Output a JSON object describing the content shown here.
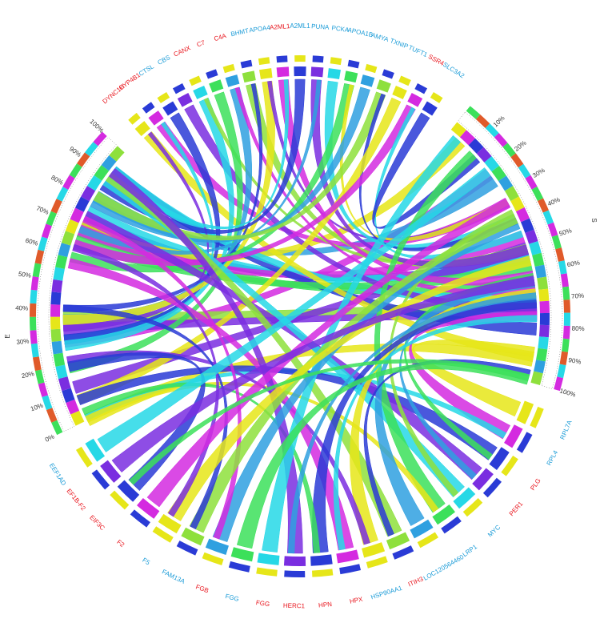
{
  "left_arc": {
    "label": "E",
    "ticks": [
      "0%",
      "10%",
      "20%",
      "30%",
      "40%",
      "50%",
      "60%",
      "70%",
      "80%",
      "90%",
      "100%"
    ]
  },
  "right_arc": {
    "label": "S",
    "ticks": [
      "10%",
      "20%",
      "30%",
      "40%",
      "50%",
      "60%",
      "70%",
      "80%",
      "90%",
      "100%"
    ]
  },
  "top_nodes": [
    {
      "label": "DYNC1H",
      "color": "#e8141c"
    },
    {
      "label": "CYP4B1",
      "color": "#e8141c"
    },
    {
      "label": "CTSL",
      "color": "#1a9bd7"
    },
    {
      "label": "CBS",
      "color": "#1a9bd7"
    },
    {
      "label": "CANX",
      "color": "#e8141c"
    },
    {
      "label": "C7",
      "color": "#e8141c"
    },
    {
      "label": "C4A",
      "color": "#e8141c"
    },
    {
      "label": "BHMT",
      "color": "#1a9bd7"
    },
    {
      "label": "APOA4",
      "color": "#1a9bd7"
    },
    {
      "label": "A2ML1",
      "color": "#e8141c"
    },
    {
      "label": "A2ML1",
      "color": "#1a9bd7"
    },
    {
      "label": "PUNA",
      "color": "#1a9bd7"
    },
    {
      "label": "PCKA",
      "color": "#1a9bd7"
    },
    {
      "label": "APOA1B",
      "color": "#1a9bd7"
    },
    {
      "label": "AMYA",
      "color": "#1a9bd7"
    },
    {
      "label": "TXNIP",
      "color": "#1a9bd7"
    },
    {
      "label": "TUFT1",
      "color": "#1a9bd7"
    },
    {
      "label": "SSR4",
      "color": "#e8141c"
    },
    {
      "label": "SLC3A2",
      "color": "#1a9bd7"
    }
  ],
  "bottom_nodes": [
    {
      "label": "RPL7A",
      "color": "#1a9bd7"
    },
    {
      "label": "RPL4",
      "color": "#1a9bd7"
    },
    {
      "label": "PLG",
      "color": "#e8141c"
    },
    {
      "label": "PER1",
      "color": "#e8141c"
    },
    {
      "label": "MYC",
      "color": "#1a9bd7"
    },
    {
      "label": "LRP1",
      "color": "#1a9bd7"
    },
    {
      "label": "LOC120564460",
      "color": "#1a9bd7"
    },
    {
      "label": "ITIH3",
      "color": "#e8141c"
    },
    {
      "label": "HSP90AA1",
      "color": "#1a9bd7"
    },
    {
      "label": "HPX",
      "color": "#e8141c"
    },
    {
      "label": "HPN",
      "color": "#e8141c"
    },
    {
      "label": "HERC1",
      "color": "#e8141c"
    },
    {
      "label": "FGG",
      "color": "#e8141c"
    },
    {
      "label": "FGG",
      "color": "#1a9bd7"
    },
    {
      "label": "FGB",
      "color": "#e8141c"
    },
    {
      "label": "FAM13A",
      "color": "#1a9bd7"
    },
    {
      "label": "F5",
      "color": "#1a9bd7"
    },
    {
      "label": "F2",
      "color": "#e8141c"
    },
    {
      "label": "EIF3C",
      "color": "#e8141c"
    },
    {
      "label": "EF1B-F2",
      "color": "#e8141c"
    },
    {
      "label": "EEF1AD",
      "color": "#1a9bd7"
    }
  ]
}
